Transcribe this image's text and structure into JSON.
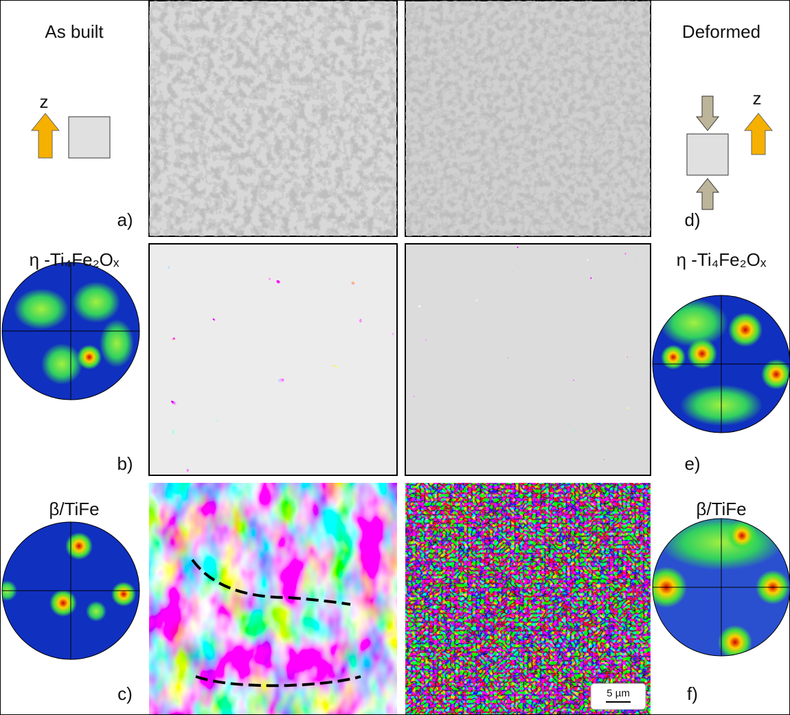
{
  "left": {
    "title": "As built",
    "z_label": "z",
    "panels": [
      "a)",
      "b)",
      "c)"
    ],
    "phases": [
      "η -Ti₄Fe₂Oₓ",
      "β/TiFe"
    ]
  },
  "right": {
    "title": "Deformed",
    "z_label": "z",
    "panels": [
      "d)",
      "e)",
      "f)"
    ],
    "phases": [
      "η -Ti₄Fe₂Oₓ",
      "β/TiFe"
    ]
  },
  "scale_bar": "5 µm"
}
